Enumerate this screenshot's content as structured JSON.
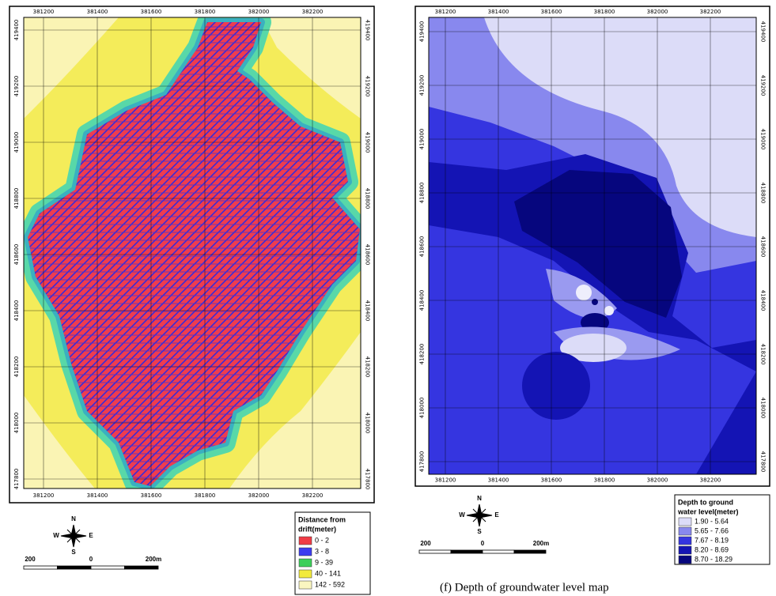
{
  "maps": [
    {
      "x_labels": [
        "381200",
        "381400",
        "381600",
        "381800",
        "382000",
        "382200"
      ],
      "y_labels": [
        "419400",
        "419200",
        "419000",
        "418800",
        "418600",
        "418400",
        "418200",
        "418000",
        "417800"
      ],
      "legend": {
        "title_lines": [
          "Distance from",
          "drift(meter)"
        ],
        "items": [
          {
            "label": "0 - 2",
            "color": "#f03c46"
          },
          {
            "label": "3 - 8",
            "color": "#3c3cf0"
          },
          {
            "label": "9 - 39",
            "color": "#3ccf5a"
          },
          {
            "label": "40 - 141",
            "color": "#f2ea3c"
          },
          {
            "label": "142 - 592",
            "color": "#faf6c0"
          }
        ]
      },
      "compass": {
        "n": "N",
        "s": "S",
        "e": "E",
        "w": "W"
      },
      "scale": {
        "left": "200",
        "zero": "0",
        "right": "200m"
      }
    },
    {
      "x_labels": [
        "381200",
        "381400",
        "381600",
        "381800",
        "382000",
        "382200"
      ],
      "y_labels": [
        "419400",
        "419200",
        "419000",
        "418800",
        "418600",
        "418400",
        "418200",
        "418000",
        "417800"
      ],
      "legend": {
        "title_lines": [
          "Depth to ground",
          "water level(meter)"
        ],
        "items": [
          {
            "label": "1.90 - 5.64",
            "color": "#dcdcf8"
          },
          {
            "label": "5.65 - 7.66",
            "color": "#8888ee"
          },
          {
            "label": "7.67 - 8.19",
            "color": "#3535e0"
          },
          {
            "label": "8.20 - 8.69",
            "color": "#1414b4"
          },
          {
            "label": "8.70 - 18.29",
            "color": "#06067e"
          }
        ]
      },
      "compass": {
        "n": "N",
        "s": "S",
        "e": "E",
        "w": "W"
      },
      "scale": {
        "left": "200",
        "zero": "0",
        "right": "200m"
      }
    }
  ],
  "caption": "(f) Depth of groundwater level map"
}
